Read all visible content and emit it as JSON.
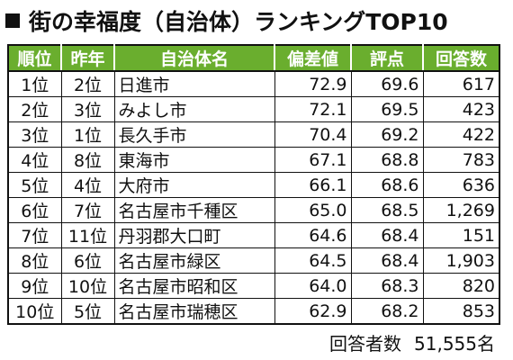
{
  "title": "街の幸福度（自治体）ランキングTOP10",
  "table": {
    "headers": [
      "順位",
      "昨年",
      "自治体名",
      "偏差値",
      "評点",
      "回答数"
    ],
    "rows": [
      {
        "rank": "1位",
        "prev": "2位",
        "name": "日進市",
        "deviation": "72.9",
        "score": "69.6",
        "responses": "617"
      },
      {
        "rank": "2位",
        "prev": "3位",
        "name": "みよし市",
        "deviation": "72.1",
        "score": "69.5",
        "responses": "423"
      },
      {
        "rank": "3位",
        "prev": "1位",
        "name": "長久手市",
        "deviation": "70.4",
        "score": "69.2",
        "responses": "422"
      },
      {
        "rank": "4位",
        "prev": "8位",
        "name": "東海市",
        "deviation": "67.1",
        "score": "68.8",
        "responses": "783"
      },
      {
        "rank": "5位",
        "prev": "4位",
        "name": "大府市",
        "deviation": "66.1",
        "score": "68.6",
        "responses": "636"
      },
      {
        "rank": "6位",
        "prev": "7位",
        "name": "名古屋市千種区",
        "deviation": "65.0",
        "score": "68.5",
        "responses": "1,269"
      },
      {
        "rank": "7位",
        "prev": "11位",
        "name": "丹羽郡大口町",
        "deviation": "64.6",
        "score": "68.4",
        "responses": "151"
      },
      {
        "rank": "8位",
        "prev": "6位",
        "name": "名古屋市緑区",
        "deviation": "64.5",
        "score": "68.4",
        "responses": "1,903"
      },
      {
        "rank": "9位",
        "prev": "10位",
        "name": "名古屋市昭和区",
        "deviation": "64.0",
        "score": "68.3",
        "responses": "820"
      },
      {
        "rank": "10位",
        "prev": "5位",
        "name": "名古屋市瑞穂区",
        "deviation": "62.9",
        "score": "68.2",
        "responses": "853"
      }
    ]
  },
  "footer": {
    "label": "回答者数",
    "value": "51,555名"
  },
  "colors": {
    "header_bg": "#6aae2e",
    "header_text": "#ffffff",
    "border": "#111111"
  }
}
